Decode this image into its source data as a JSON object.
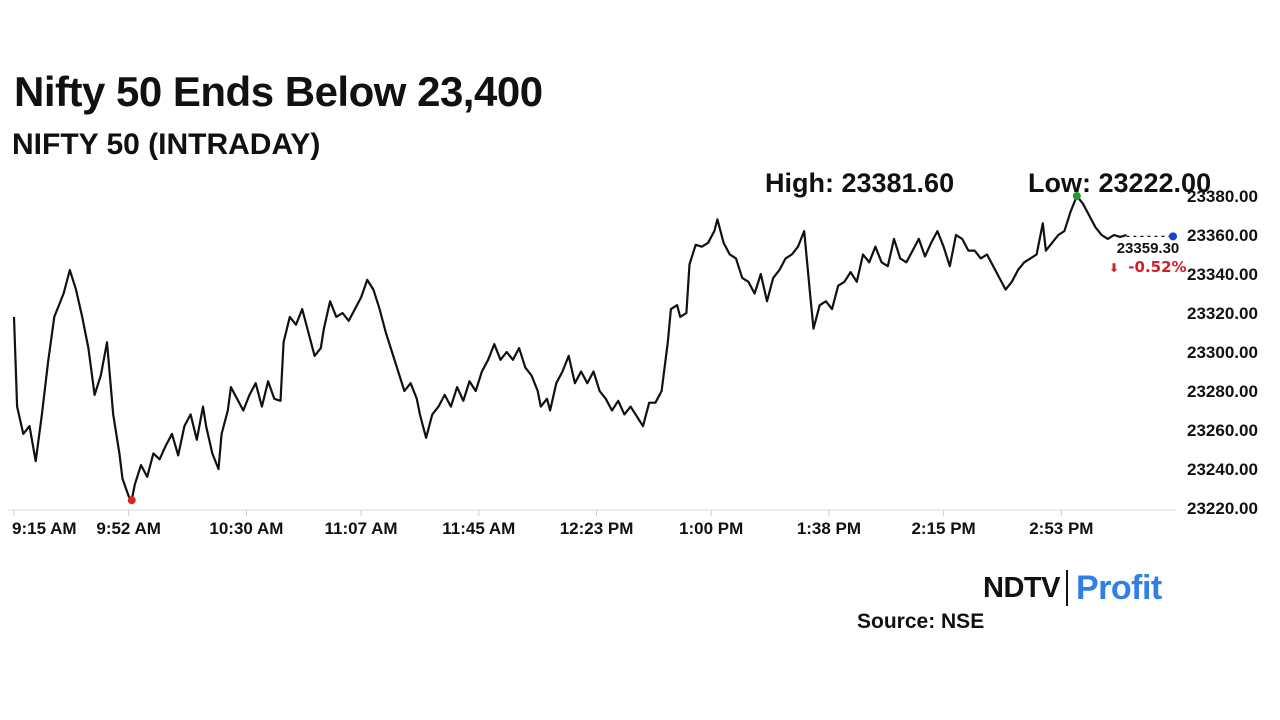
{
  "header": {
    "title": "Nifty 50 Ends Below 23,400",
    "subtitle": "NIFTY 50 (INTRADAY)"
  },
  "stats": {
    "high_label": "High: 23381.60",
    "low_label": "Low: 23222.00"
  },
  "source": "Source: NSE",
  "logo": {
    "part1": "NDTV",
    "part2": "Profit"
  },
  "colors": {
    "line": "#111111",
    "high_marker": "#1e9e2f",
    "low_marker": "#e0201c",
    "last_marker": "#1f3fd0",
    "change_negative": "#d0202a",
    "logo_profit": "#2f7fe6"
  },
  "chart_data": {
    "type": "line",
    "title": "NIFTY 50 (INTRADAY)",
    "xlabel": "",
    "ylabel": "",
    "x_ticks": [
      "9:15 AM",
      "9:52 AM",
      "10:30 AM",
      "11:07 AM",
      "11:45 AM",
      "12:23 PM",
      "1:00 PM",
      "1:38 PM",
      "2:15 PM",
      "2:53 PM"
    ],
    "y_ticks": [
      "23220.00",
      "23240.00",
      "23260.00",
      "23280.00",
      "23300.00",
      "23320.00",
      "23340.00",
      "23360.00",
      "23380.00"
    ],
    "ylim": [
      23220,
      23380
    ],
    "xlim": [
      "9:15 AM",
      "3:30 PM"
    ],
    "grid": false,
    "series": [
      {
        "points": [
          [
            "9:15",
            23318
          ],
          [
            "9:16",
            23272
          ],
          [
            "9:18",
            23258
          ],
          [
            "9:20",
            23262
          ],
          [
            "9:22",
            23244
          ],
          [
            "9:24",
            23268
          ],
          [
            "9:26",
            23295
          ],
          [
            "9:28",
            23318
          ],
          [
            "9:31",
            23330
          ],
          [
            "9:33",
            23342
          ],
          [
            "9:35",
            23332
          ],
          [
            "9:37",
            23318
          ],
          [
            "9:39",
            23302
          ],
          [
            "9:41",
            23278
          ],
          [
            "9:43",
            23288
          ],
          [
            "9:45",
            23305
          ],
          [
            "9:47",
            23268
          ],
          [
            "9:49",
            23248
          ],
          [
            "9:50",
            23235
          ],
          [
            "9:52",
            23226
          ],
          [
            "9:53",
            23224
          ],
          [
            "9:54",
            23232
          ],
          [
            "9:56",
            23242
          ],
          [
            "9:58",
            23236
          ],
          [
            "10:00",
            23248
          ],
          [
            "10:02",
            23245
          ],
          [
            "10:04",
            23252
          ],
          [
            "10:06",
            23258
          ],
          [
            "10:08",
            23247
          ],
          [
            "10:10",
            23262
          ],
          [
            "10:12",
            23268
          ],
          [
            "10:14",
            23255
          ],
          [
            "10:16",
            23272
          ],
          [
            "10:17",
            23262
          ],
          [
            "10:19",
            23248
          ],
          [
            "10:21",
            23240
          ],
          [
            "10:22",
            23258
          ],
          [
            "10:24",
            23270
          ],
          [
            "10:25",
            23282
          ],
          [
            "10:27",
            23276
          ],
          [
            "10:29",
            23270
          ],
          [
            "10:31",
            23278
          ],
          [
            "10:33",
            23284
          ],
          [
            "10:35",
            23272
          ],
          [
            "10:37",
            23285
          ],
          [
            "10:39",
            23276
          ],
          [
            "10:41",
            23275
          ],
          [
            "10:42",
            23305
          ],
          [
            "10:44",
            23318
          ],
          [
            "10:46",
            23314
          ],
          [
            "10:48",
            23322
          ],
          [
            "10:50",
            23310
          ],
          [
            "10:52",
            23298
          ],
          [
            "10:54",
            23302
          ],
          [
            "10:55",
            23312
          ],
          [
            "10:57",
            23326
          ],
          [
            "10:59",
            23318
          ],
          [
            "11:01",
            23320
          ],
          [
            "11:03",
            23316
          ],
          [
            "11:05",
            23322
          ],
          [
            "11:07",
            23328
          ],
          [
            "11:09",
            23337
          ],
          [
            "11:11",
            23332
          ],
          [
            "11:13",
            23322
          ],
          [
            "11:15",
            23310
          ],
          [
            "11:17",
            23300
          ],
          [
            "11:19",
            23290
          ],
          [
            "11:21",
            23280
          ],
          [
            "11:23",
            23284
          ],
          [
            "11:25",
            23276
          ],
          [
            "11:26",
            23268
          ],
          [
            "11:27",
            23262
          ],
          [
            "11:28",
            23256
          ],
          [
            "11:30",
            23268
          ],
          [
            "11:32",
            23272
          ],
          [
            "11:34",
            23278
          ],
          [
            "11:36",
            23272
          ],
          [
            "11:38",
            23282
          ],
          [
            "11:40",
            23275
          ],
          [
            "11:42",
            23285
          ],
          [
            "11:44",
            23280
          ],
          [
            "11:46",
            23290
          ],
          [
            "11:48",
            23296
          ],
          [
            "11:50",
            23304
          ],
          [
            "11:52",
            23296
          ],
          [
            "11:54",
            23300
          ],
          [
            "11:56",
            23296
          ],
          [
            "11:58",
            23302
          ],
          [
            "12:00",
            23292
          ],
          [
            "12:02",
            23288
          ],
          [
            "12:04",
            23280
          ],
          [
            "12:05",
            23272
          ],
          [
            "12:07",
            23276
          ],
          [
            "12:08",
            23270
          ],
          [
            "12:10",
            23284
          ],
          [
            "12:12",
            23290
          ],
          [
            "12:14",
            23298
          ],
          [
            "12:16",
            23284
          ],
          [
            "12:18",
            23290
          ],
          [
            "12:20",
            23284
          ],
          [
            "12:22",
            23290
          ],
          [
            "12:24",
            23280
          ],
          [
            "12:26",
            23276
          ],
          [
            "12:28",
            23270
          ],
          [
            "12:30",
            23275
          ],
          [
            "12:32",
            23268
          ],
          [
            "12:34",
            23272
          ],
          [
            "12:36",
            23267
          ],
          [
            "12:38",
            23262
          ],
          [
            "12:40",
            23274
          ],
          [
            "12:42",
            23274
          ],
          [
            "12:44",
            23280
          ],
          [
            "12:46",
            23305
          ],
          [
            "12:47",
            23322
          ],
          [
            "12:49",
            23324
          ],
          [
            "12:50",
            23318
          ],
          [
            "12:52",
            23320
          ],
          [
            "12:53",
            23345
          ],
          [
            "12:55",
            23355
          ],
          [
            "12:57",
            23354
          ],
          [
            "12:59",
            23356
          ],
          [
            "13:01",
            23362
          ],
          [
            "13:02",
            23368
          ],
          [
            "13:04",
            23356
          ],
          [
            "13:06",
            23350
          ],
          [
            "13:08",
            23348
          ],
          [
            "13:10",
            23338
          ],
          [
            "13:12",
            23336
          ],
          [
            "13:14",
            23330
          ],
          [
            "13:16",
            23340
          ],
          [
            "13:18",
            23326
          ],
          [
            "13:20",
            23338
          ],
          [
            "13:22",
            23342
          ],
          [
            "13:24",
            23348
          ],
          [
            "13:26",
            23350
          ],
          [
            "13:28",
            23354
          ],
          [
            "13:30",
            23362
          ],
          [
            "13:32",
            23328
          ],
          [
            "13:33",
            23312
          ],
          [
            "13:35",
            23324
          ],
          [
            "13:37",
            23326
          ],
          [
            "13:39",
            23322
          ],
          [
            "13:41",
            23334
          ],
          [
            "13:43",
            23336
          ],
          [
            "13:45",
            23341
          ],
          [
            "13:47",
            23336
          ],
          [
            "13:49",
            23350
          ],
          [
            "13:51",
            23346
          ],
          [
            "13:53",
            23354
          ],
          [
            "13:55",
            23346
          ],
          [
            "13:57",
            23344
          ],
          [
            "13:59",
            23358
          ],
          [
            "14:01",
            23348
          ],
          [
            "14:03",
            23346
          ],
          [
            "14:05",
            23352
          ],
          [
            "14:07",
            23358
          ],
          [
            "14:09",
            23349
          ],
          [
            "14:11",
            23356
          ],
          [
            "14:13",
            23362
          ],
          [
            "14:15",
            23354
          ],
          [
            "14:17",
            23344
          ],
          [
            "14:19",
            23360
          ],
          [
            "14:21",
            23358
          ],
          [
            "14:23",
            23352
          ],
          [
            "14:25",
            23352
          ],
          [
            "14:27",
            23348
          ],
          [
            "14:29",
            23350
          ],
          [
            "14:31",
            23344
          ],
          [
            "14:33",
            23338
          ],
          [
            "14:35",
            23332
          ],
          [
            "14:37",
            23336
          ],
          [
            "14:39",
            23342
          ],
          [
            "14:41",
            23346
          ],
          [
            "14:43",
            23348
          ],
          [
            "14:45",
            23350
          ],
          [
            "14:47",
            23366
          ],
          [
            "14:48",
            23352
          ],
          [
            "14:50",
            23356
          ],
          [
            "14:52",
            23360
          ],
          [
            "14:54",
            23362
          ],
          [
            "14:56",
            23372
          ],
          [
            "14:58",
            23380
          ],
          [
            "15:00",
            23376
          ],
          [
            "15:02",
            23370
          ],
          [
            "15:04",
            23364
          ],
          [
            "15:06",
            23360
          ],
          [
            "15:08",
            23358
          ],
          [
            "15:10",
            23360
          ],
          [
            "15:12",
            23359
          ],
          [
            "15:14",
            23360
          ]
        ]
      }
    ],
    "annotations": {
      "high_point": {
        "x": "14:58",
        "y": 23380
      },
      "low_point": {
        "x": "9:53",
        "y": 23224
      },
      "last_point": {
        "x": "15:14",
        "y": 23359.3
      },
      "last_price_label": "23359.30",
      "change_label": "-0.52%",
      "change_arrow": "⬇"
    }
  }
}
